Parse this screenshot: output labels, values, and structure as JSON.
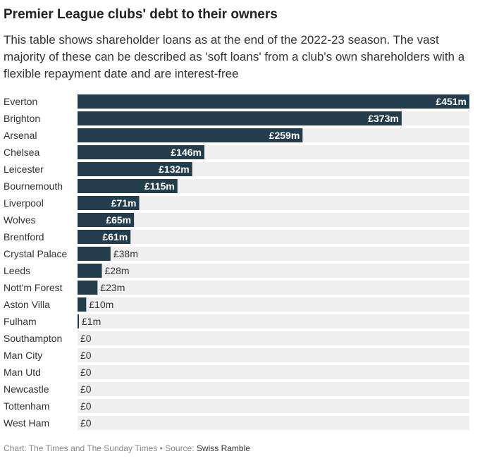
{
  "header": {
    "title": "Premier League clubs' debt to their owners",
    "subtitle": "This table shows shareholder loans as at the end of the 2022-23 season. The vast majority of these can be described as 'soft loans' from a club's own shareholders with a flexible repayment date and are interest-free"
  },
  "footer": {
    "credit": "Chart: The Times and The Sunday Times",
    "separator": " • Source: ",
    "source": "Swiss Ramble"
  },
  "colors": {
    "bar": "#233d4c",
    "track": "#f0f0f0",
    "label_inside": "#ffffff",
    "label_outside": "#333333"
  },
  "chart_data": {
    "type": "bar",
    "orientation": "horizontal",
    "categories": [
      "Everton",
      "Brighton",
      "Arsenal",
      "Chelsea",
      "Leicester",
      "Bournemouth",
      "Liverpool",
      "Wolves",
      "Brentford",
      "Crystal Palace",
      "Leeds",
      "Nott'm Forest",
      "Aston Villa",
      "Fulham",
      "Southampton",
      "Man City",
      "Man Utd",
      "Newcastle",
      "Tottenham",
      "West Ham"
    ],
    "values": [
      451,
      373,
      259,
      146,
      132,
      115,
      71,
      65,
      61,
      38,
      28,
      23,
      10,
      1,
      0,
      0,
      0,
      0,
      0,
      0
    ],
    "value_labels": [
      "£451m",
      "£373m",
      "£259m",
      "£146m",
      "£132m",
      "£115m",
      "£71m",
      "£65m",
      "£61m",
      "£38m",
      "£28m",
      "£23m",
      "£10m",
      "£1m",
      "£0",
      "£0",
      "£0",
      "£0",
      "£0",
      "£0"
    ],
    "xlim": [
      0,
      451
    ]
  }
}
